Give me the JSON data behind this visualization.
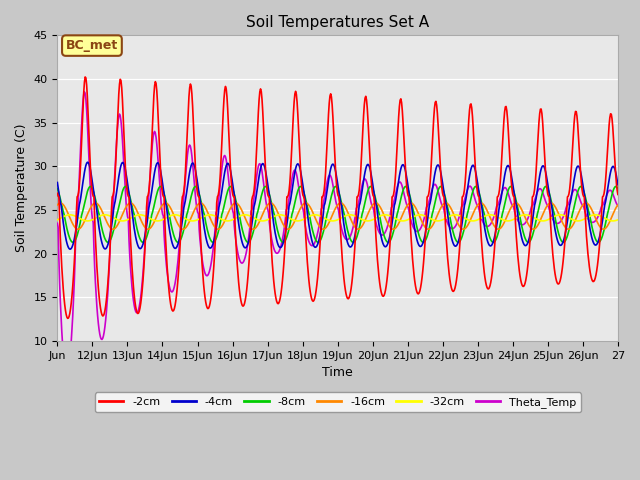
{
  "title": "Soil Temperatures Set A",
  "xlabel": "Time",
  "ylabel": "Soil Temperature (C)",
  "ylim": [
    10,
    45
  ],
  "xlim_start": 0,
  "xlim_end": 16,
  "fig_width": 6.4,
  "fig_height": 4.8,
  "dpi": 100,
  "fig_bg_color": "#c8c8c8",
  "axes_bg_color": "#e8e8e8",
  "annotation_text": "BC_met",
  "annotation_bg": "#ffff99",
  "annotation_border": "#8B4513",
  "tick_labels": [
    "Jun",
    "12Jun",
    "13Jun",
    "14Jun",
    "15Jun",
    "16Jun",
    "17Jun",
    "18Jun",
    "19Jun",
    "20Jun",
    "21Jun",
    "22Jun",
    "23Jun",
    "24Jun",
    "25Jun",
    "26Jun",
    "27"
  ],
  "series_colors": {
    "-2cm": "#ff0000",
    "-4cm": "#0000cc",
    "-8cm": "#00cc00",
    "-16cm": "#ff8800",
    "-32cm": "#ffff00",
    "Theta_Temp": "#cc00cc"
  },
  "line_width": 1.2,
  "legend_entries": [
    "-2cm",
    "-4cm",
    "-8cm",
    "-16cm",
    "-32cm",
    "Theta_Temp"
  ]
}
